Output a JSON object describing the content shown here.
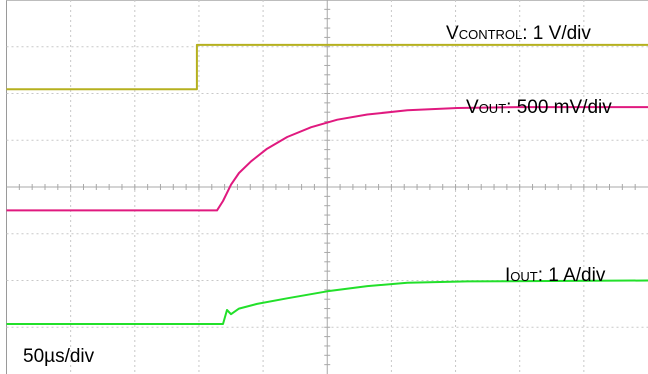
{
  "chart_data": {
    "type": "line",
    "x_unit": "µs",
    "grid": true,
    "timebase_label": "50µs/div",
    "channels": [
      {
        "name_main": "V",
        "name_sub": "CONTROL",
        "scale_label": ": 1 V/div",
        "color": "#b5b01f",
        "points": [
          [
            0,
            2.09
          ],
          [
            95,
            2.09
          ],
          [
            95,
            3.04
          ],
          [
            320,
            3.04
          ]
        ]
      },
      {
        "name_main": "V",
        "name_sub": "OUT",
        "scale_label": ": 500 mV/div",
        "color": "#e0197f",
        "points": [
          [
            0,
            -0.5
          ],
          [
            105,
            -0.5
          ],
          [
            108,
            -0.3
          ],
          [
            112,
            0.05
          ],
          [
            116,
            0.3
          ],
          [
            122,
            0.55
          ],
          [
            130,
            0.82
          ],
          [
            140,
            1.07
          ],
          [
            152,
            1.28
          ],
          [
            165,
            1.44
          ],
          [
            180,
            1.55
          ],
          [
            200,
            1.64
          ],
          [
            225,
            1.69
          ],
          [
            255,
            1.71
          ],
          [
            320,
            1.71
          ]
        ]
      },
      {
        "name_main": "I",
        "name_sub": "OUT",
        "scale_label": ": 1 A/div",
        "color": "#22e02a",
        "points": [
          [
            0,
            -2.93
          ],
          [
            108,
            -2.93
          ],
          [
            110,
            -2.63
          ],
          [
            112,
            -2.72
          ],
          [
            116,
            -2.6
          ],
          [
            125,
            -2.5
          ],
          [
            140,
            -2.38
          ],
          [
            160,
            -2.23
          ],
          [
            180,
            -2.12
          ],
          [
            200,
            -2.05
          ],
          [
            230,
            -2.02
          ],
          [
            320,
            -2.0
          ]
        ]
      }
    ]
  }
}
